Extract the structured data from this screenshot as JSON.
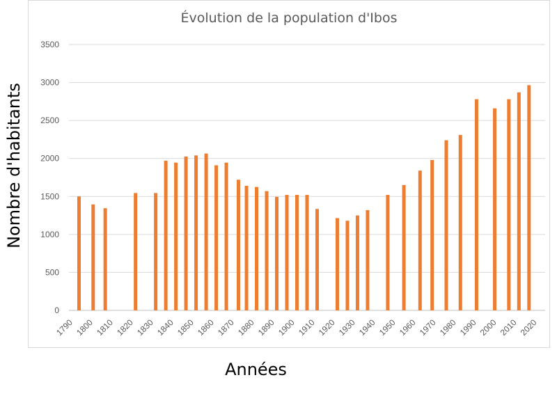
{
  "chart_data": {
    "type": "bar",
    "title": "Évolution de la population d'Ibos",
    "xlabel": "Années",
    "ylabel": "Nombre d'habitants",
    "ylim": [
      0,
      3500
    ],
    "yticks": [
      0,
      500,
      1000,
      1500,
      2000,
      2500,
      3000,
      3500
    ],
    "xlim": [
      1788,
      2024
    ],
    "xticks": [
      1790,
      1800,
      1810,
      1820,
      1830,
      1840,
      1850,
      1860,
      1870,
      1880,
      1890,
      1900,
      1910,
      1920,
      1930,
      1940,
      1950,
      1960,
      1970,
      1980,
      1990,
      2000,
      2010,
      2020
    ],
    "grid": true,
    "bar_color": "#ED7D31",
    "x": [
      1793,
      1800,
      1806,
      1821,
      1831,
      1836,
      1841,
      1846,
      1851,
      1856,
      1861,
      1866,
      1872,
      1876,
      1881,
      1886,
      1891,
      1896,
      1901,
      1906,
      1911,
      1921,
      1926,
      1931,
      1936,
      1946,
      1954,
      1962,
      1968,
      1975,
      1982,
      1990,
      1999,
      2006,
      2011,
      2016,
      2021
    ],
    "values": [
      1500,
      1395,
      1345,
      1545,
      1545,
      1970,
      1945,
      2025,
      2040,
      2065,
      1910,
      1945,
      1720,
      1640,
      1625,
      1570,
      1495,
      1520,
      1520,
      1520,
      1335,
      1215,
      1180,
      1250,
      1320,
      1520,
      1650,
      1840,
      1980,
      2240,
      2310,
      2780,
      2660,
      2780,
      2870,
      2965,
      0
    ]
  }
}
